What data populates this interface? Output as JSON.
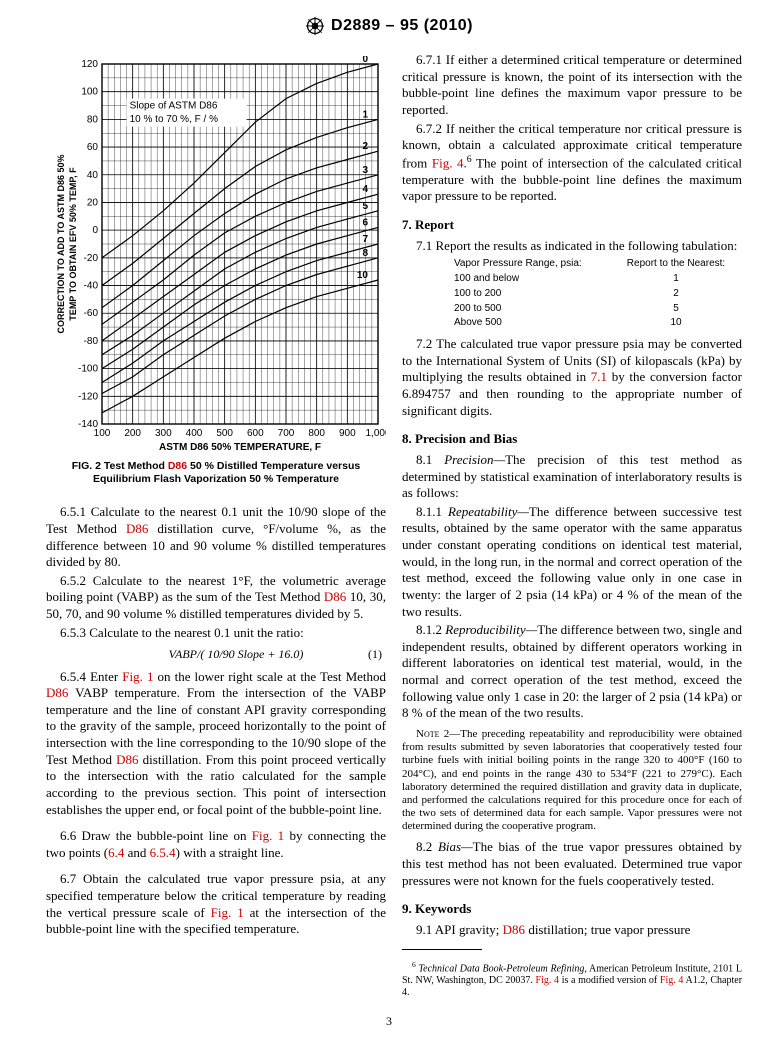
{
  "header": {
    "designation": "D2889 – 95 (2010)"
  },
  "figure2": {
    "type": "line-family",
    "caption_prefix": "FIG. 2  Test Method ",
    "caption_link": "D86",
    "caption_suffix": " 50 % Distilled Temperature versus Equilibrium Flash Vaporization 50 % Temperature",
    "x_label": "ASTM D86 50% TEMPERATURE, F",
    "y_label_line1": "CORRECTION TO ADD TO ASTM D86 50%",
    "y_label_line2": "TEMP TO OBTAIN EFV 50% TEMP, F",
    "annotation_line1": "Slope of ASTM D86",
    "annotation_line2": "10 % to 70 %, F / %",
    "xlim": [
      100,
      1000
    ],
    "ylim": [
      -140,
      120
    ],
    "x_major_step": 100,
    "x_minor_step": 20,
    "y_major_step": 20,
    "y_minor_step": 10,
    "x_ticks": [
      "100",
      "200",
      "300",
      "400",
      "500",
      "600",
      "700",
      "800",
      "900",
      "1,000"
    ],
    "curve_labels": [
      "0",
      "1",
      "2",
      "3",
      "4",
      "5",
      "6",
      "7",
      "8",
      "10"
    ],
    "curves_y_at_x": {
      "x_samples": [
        100,
        200,
        300,
        400,
        500,
        600,
        700,
        800,
        900,
        1000
      ],
      "series": {
        "0": [
          -20,
          -4,
          14,
          34,
          56,
          78,
          95,
          106,
          114,
          120
        ],
        "1": [
          -40,
          -24,
          -6,
          12,
          30,
          46,
          58,
          67,
          74,
          80
        ],
        "2": [
          -56,
          -40,
          -22,
          -4,
          12,
          26,
          37,
          45,
          51,
          57
        ],
        "3": [
          -68,
          -52,
          -36,
          -18,
          -2,
          10,
          20,
          28,
          34,
          40
        ],
        "4": [
          -80,
          -64,
          -48,
          -32,
          -16,
          -4,
          6,
          14,
          20,
          26
        ],
        "5": [
          -90,
          -76,
          -60,
          -44,
          -28,
          -16,
          -6,
          2,
          8,
          14
        ],
        "6": [
          -100,
          -86,
          -70,
          -54,
          -40,
          -28,
          -18,
          -10,
          -4,
          2
        ],
        "7": [
          -110,
          -96,
          -80,
          -66,
          -52,
          -40,
          -30,
          -22,
          -16,
          -10
        ],
        "8": [
          -118,
          -106,
          -90,
          -76,
          -62,
          -50,
          -40,
          -32,
          -26,
          -20
        ],
        "10": [
          -132,
          -120,
          -106,
          -92,
          -78,
          -66,
          -56,
          -48,
          -42,
          -36
        ]
      }
    },
    "background_color": "#ffffff",
    "grid_color": "#000000",
    "curve_color": "#000000",
    "curve_width": 1.2,
    "label_fontsize": 10,
    "axis_font": "Arial"
  },
  "left_body": {
    "p651a": "6.5.1 Calculate to the nearest 0.1 unit the 10/90 slope of the Test Method ",
    "p651link": "D86",
    "p651b": " distillation curve, °F/volume %, as the difference between 10 and 90 volume % distilled temperatures divided by 80.",
    "p652a": "6.5.2 Calculate to the nearest 1°F, the volumetric average boiling point (VABP) as the sum of the Test Method ",
    "p652link": "D86",
    "p652b": " 10, 30, 50, 70, and 90 volume % distilled temperatures divided by 5.",
    "p653": "6.5.3 Calculate to the nearest 0.1 unit the ratio:",
    "eqn1": "VABP/( 10/90 Slope + 16.0)",
    "eqn1num": "(1)",
    "p654a": "6.5.4 Enter ",
    "p654link1": "Fig. 1",
    "p654b": " on the lower right scale at the Test Method ",
    "p654link2": "D86",
    "p654c": " VABP temperature. From the intersection of the VABP temperature and the line of constant API gravity corresponding to the gravity of the sample, proceed horizontally to the point of intersection with the line corresponding to the 10/90 slope of the Test Method ",
    "p654link3": "D86",
    "p654d": " distillation. From this point proceed vertically to the intersection with the ratio calculated for the sample according to the previous section. This point of intersection establishes the upper end, or focal point of the bubble-point line.",
    "p66a": "6.6 Draw the bubble-point line on ",
    "p66link1": "Fig. 1",
    "p66b": " by connecting the two points (",
    "p66link2": "6.4",
    "p66c": " and ",
    "p66link3": "6.5.4",
    "p66d": ") with a straight line.",
    "p67a": "6.7 Obtain the calculated true vapor pressure psia, at any specified temperature below the critical temperature by reading the vertical pressure scale of ",
    "p67link1": "Fig. 1",
    "p67b": " at the intersection of the bubble-point line with the specified temperature."
  },
  "right_body": {
    "p671": "6.7.1 If either a determined critical temperature or determined critical pressure is known, the point of its intersection with the bubble-point line defines the maximum vapor pressure to be reported.",
    "p672a": "6.7.2 If neither the critical temperature nor critical pressure is known, obtain a calculated approximate critical temperature from ",
    "p672link": "Fig. 4",
    "p672b": ".",
    "p672sup": "6",
    "p672c": " The point of intersection of the calculated critical temperature with the bubble-point line defines the maximum vapor pressure to be reported.",
    "sec7": "7. Report",
    "p71": "7.1 Report the results as indicated in the following tabulation:",
    "table": {
      "h1": "Vapor Pressure Range, psia:",
      "h2": "Report to the Nearest:",
      "rows": [
        [
          "100 and below",
          "1"
        ],
        [
          "100 to 200",
          "2"
        ],
        [
          "200 to 500",
          "5"
        ],
        [
          "Above 500",
          "10"
        ]
      ]
    },
    "p72a": "7.2 The calculated true vapor pressure psia may be converted to the International System of Units (SI) of kilopascals (kPa) by multiplying the results obtained in ",
    "p72link": "7.1",
    "p72b": " by the conversion factor 6.894757 and then rounding to the appropriate number of significant digits.",
    "sec8": "8. Precision and Bias",
    "p81pre": "8.1 ",
    "p81ital": "Precision—",
    "p81": "The precision of this test method as determined by statistical examination of interlaboratory results is as follows:",
    "p811pre": "8.1.1 ",
    "p811ital": "Repeatability—",
    "p811": "The difference between successive test results, obtained by the same operator with the same apparatus under constant operating conditions on identical test material, would, in the long run, in the normal and correct operation of the test method, exceed the following value only in one case in twenty: the larger of 2 psia (14 kPa) or 4 % of the mean of the two results.",
    "p812pre": "8.1.2 ",
    "p812ital": "Reproducibility—",
    "p812": "The difference between two, single and independent results, obtained by different operators working in different laboratories on identical test material, would, in the normal and correct operation of the test method, exceed the following value only 1 case in 20: the larger of 2 psia (14 kPa) or 8 % of the mean of the two results.",
    "note2label": "Note 2—",
    "note2": "The preceding repeatability and reproducibility were obtained from results submitted by seven laboratories that cooperatively tested four turbine fuels with initial boiling points in the range 320 to 400°F (160 to 204°C), and end points in the range 430 to 534°F (221 to 279°C). Each laboratory determined the required distillation and gravity data in duplicate, and performed the calculations required for this procedure once for each of the two sets of determined data for each sample. Vapor pressures were not determined during the cooperative program.",
    "p82pre": "8.2 ",
    "p82ital": "Bias—",
    "p82": "The bias of the true vapor pressures obtained by this test method has not been evaluated. Determined true vapor pressures were not known for the fuels cooperatively tested.",
    "sec9": "9. Keywords",
    "p91a": "9.1 API gravity; ",
    "p91link": "D86",
    "p91b": " distillation; true vapor pressure",
    "fn6sup": "6",
    "fn6a": " Technical Data Book-Petroleum Refining",
    "fn6b": ", American Petroleum Institute, 2101 L St. NW, Washington, DC 20037. ",
    "fn6link1": "Fig. 4",
    "fn6c": " is a modified version of ",
    "fn6link2": "Fig. 4",
    "fn6d": " A1.2, Chapter 4."
  },
  "pagenum": "3"
}
